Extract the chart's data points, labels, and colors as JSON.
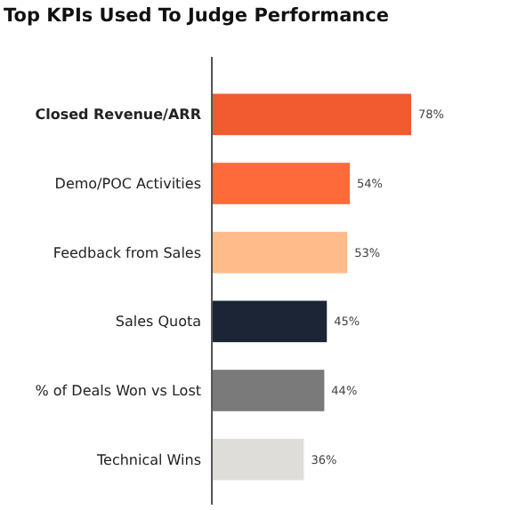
{
  "chart_data": {
    "type": "bar",
    "orientation": "horizontal",
    "title": "Top KPIs Used To Judge Performance",
    "categories": [
      "Closed Revenue/ARR",
      "Demo/POC Activities",
      "Feedback from Sales",
      "Sales Quota",
      "% of Deals Won vs Lost",
      "Technical Wins"
    ],
    "values": [
      78,
      54,
      53,
      45,
      44,
      36
    ],
    "colors": [
      "#f25a30",
      "#ff6a3a",
      "#ffbb8a",
      "#1b2535",
      "#7a7a7a",
      "#deddd9"
    ],
    "value_labels": [
      "78%",
      "54%",
      "53%",
      "45%",
      "44%",
      "36%"
    ]
  }
}
